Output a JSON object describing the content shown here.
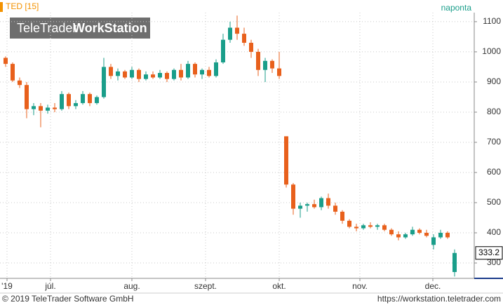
{
  "header": {
    "watermark_left": "TeleTrader",
    "watermark_right": "WorkStation"
  },
  "footer": {
    "left": "© 2019 TeleTrader Software GmbH",
    "right": "https://workstation.teletrader.com"
  },
  "chart_data": {
    "type": "candlestick",
    "title": "TED [15]",
    "subtitle": "naponta",
    "up_color": "#1a9e8a",
    "down_color": "#e8601c",
    "open": [
      980,
      960,
      905,
      890,
      810,
      820,
      805,
      815,
      810,
      860,
      820,
      830,
      860,
      830,
      850,
      950,
      920,
      935,
      915,
      940,
      910,
      925,
      915,
      930,
      910,
      940,
      915,
      960,
      925,
      940,
      920,
      965,
      1040,
      1080,
      1060,
      1030,
      1000,
      940,
      970,
      945,
      720,
      560,
      480,
      490,
      495,
      485,
      515,
      490,
      470,
      440,
      420,
      415,
      425,
      420,
      425,
      410,
      395,
      385,
      395,
      410,
      400,
      360,
      385,
      400,
      270
    ],
    "high": [
      985,
      965,
      915,
      900,
      830,
      830,
      825,
      830,
      870,
      865,
      840,
      870,
      865,
      855,
      980,
      960,
      945,
      940,
      950,
      945,
      935,
      935,
      940,
      935,
      945,
      960,
      970,
      965,
      945,
      950,
      975,
      1060,
      1100,
      1120,
      1080,
      1040,
      1010,
      980,
      975,
      1000,
      720,
      565,
      500,
      500,
      510,
      520,
      530,
      500,
      475,
      445,
      430,
      430,
      435,
      430,
      430,
      415,
      405,
      400,
      420,
      415,
      410,
      395,
      410,
      405,
      345
    ],
    "low": [
      950,
      900,
      880,
      780,
      790,
      750,
      795,
      800,
      805,
      810,
      810,
      825,
      820,
      825,
      845,
      910,
      905,
      910,
      910,
      900,
      905,
      910,
      910,
      900,
      905,
      905,
      910,
      915,
      910,
      915,
      915,
      960,
      1030,
      1040,
      1020,
      980,
      920,
      900,
      930,
      910,
      550,
      460,
      450,
      470,
      480,
      475,
      480,
      460,
      430,
      415,
      405,
      410,
      415,
      410,
      405,
      390,
      375,
      380,
      390,
      395,
      385,
      345,
      380,
      380,
      255
    ],
    "close": [
      960,
      905,
      890,
      810,
      820,
      805,
      815,
      810,
      860,
      820,
      830,
      860,
      830,
      850,
      950,
      920,
      935,
      915,
      940,
      910,
      925,
      915,
      930,
      910,
      940,
      915,
      960,
      925,
      940,
      920,
      965,
      1040,
      1080,
      1060,
      1030,
      1000,
      940,
      970,
      945,
      920,
      560,
      480,
      490,
      495,
      485,
      515,
      490,
      470,
      440,
      420,
      415,
      425,
      420,
      425,
      410,
      395,
      385,
      395,
      410,
      400,
      390,
      385,
      400,
      385,
      333.2
    ],
    "ylim": [
      249,
      1130
    ],
    "yticks": [
      300,
      400,
      500,
      600,
      700,
      800,
      900,
      1000,
      1100
    ],
    "xlim": [
      -0.8,
      66.8
    ],
    "xticks": [
      {
        "value": 0.2,
        "label": "'19"
      },
      {
        "value": 6.4,
        "label": "júl."
      },
      {
        "value": 18,
        "label": "aug."
      },
      {
        "value": 28.5,
        "label": "szept."
      },
      {
        "value": 39,
        "label": "okt."
      },
      {
        "value": 50.5,
        "label": "nov."
      },
      {
        "value": 60.9,
        "label": "dec."
      }
    ],
    "grid": true
  }
}
